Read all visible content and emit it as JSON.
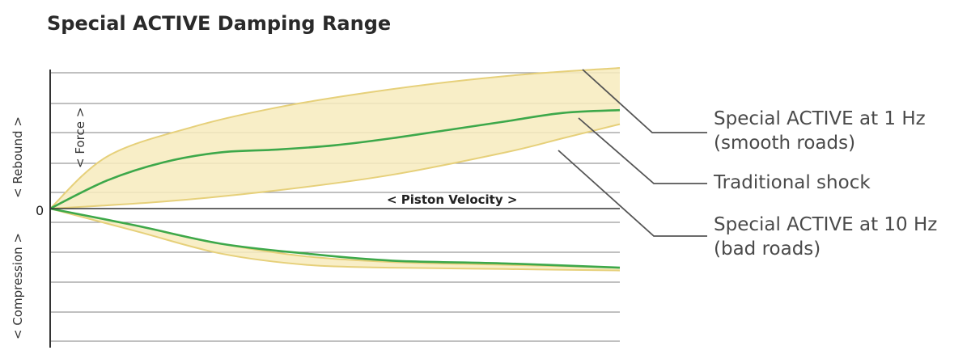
{
  "chart_data": {
    "type": "area",
    "title": "Special ACTIVE Damping Range",
    "xlabel": "< Piston Velocity >",
    "ylabel": "< Force >",
    "y_positive_label": "< Rebound >",
    "y_negative_label": "< Compression >",
    "zero_label": "0",
    "xlim": [
      0,
      1
    ],
    "ylim": [
      -1,
      1
    ],
    "grid": true,
    "colors": {
      "band_fill": "#f7ebbd",
      "band_edge": "#e6d07a",
      "traditional_line": "#3da84a",
      "grid": "#9a9a9a",
      "axis": "#333333",
      "leader": "#555555"
    },
    "band_rebound_upper": {
      "x": [
        0,
        0.1,
        0.25,
        0.4,
        0.55,
        0.7,
        0.85,
        1.0
      ],
      "y": [
        0,
        0.37,
        0.58,
        0.72,
        0.82,
        0.9,
        0.96,
        1.0
      ]
    },
    "band_rebound_lower": {
      "x": [
        0,
        0.2,
        0.4,
        0.6,
        0.8,
        0.9,
        1.0
      ],
      "y": [
        0,
        0.05,
        0.13,
        0.24,
        0.4,
        0.5,
        0.6
      ]
    },
    "traditional_rebound": {
      "x": [
        0,
        0.1,
        0.2,
        0.3,
        0.4,
        0.5,
        0.6,
        0.7,
        0.8,
        0.9,
        1.0
      ],
      "y": [
        0,
        0.2,
        0.33,
        0.4,
        0.42,
        0.45,
        0.5,
        0.56,
        0.62,
        0.68,
        0.7
      ]
    },
    "band_compression_upper": {
      "x": [
        0,
        0.15,
        0.3,
        0.45,
        0.6,
        0.8,
        1.0
      ],
      "y": [
        0,
        -0.12,
        -0.25,
        -0.34,
        -0.38,
        -0.4,
        -0.42
      ]
    },
    "band_compression_lower": {
      "x": [
        0,
        0.15,
        0.3,
        0.45,
        0.6,
        0.8,
        1.0
      ],
      "y": [
        0,
        -0.16,
        -0.32,
        -0.4,
        -0.42,
        -0.43,
        -0.44
      ]
    },
    "traditional_compression": {
      "x": [
        0,
        0.15,
        0.3,
        0.45,
        0.6,
        0.8,
        1.0
      ],
      "y": [
        0,
        -0.12,
        -0.25,
        -0.32,
        -0.37,
        -0.39,
        -0.42
      ]
    },
    "annotations": [
      {
        "lines": [
          "Special ACTIVE at 1 Hz",
          "(smooth roads)"
        ]
      },
      {
        "lines": [
          "Traditional shock"
        ]
      },
      {
        "lines": [
          "Special ACTIVE at 10 Hz",
          "(bad roads)"
        ]
      }
    ]
  }
}
